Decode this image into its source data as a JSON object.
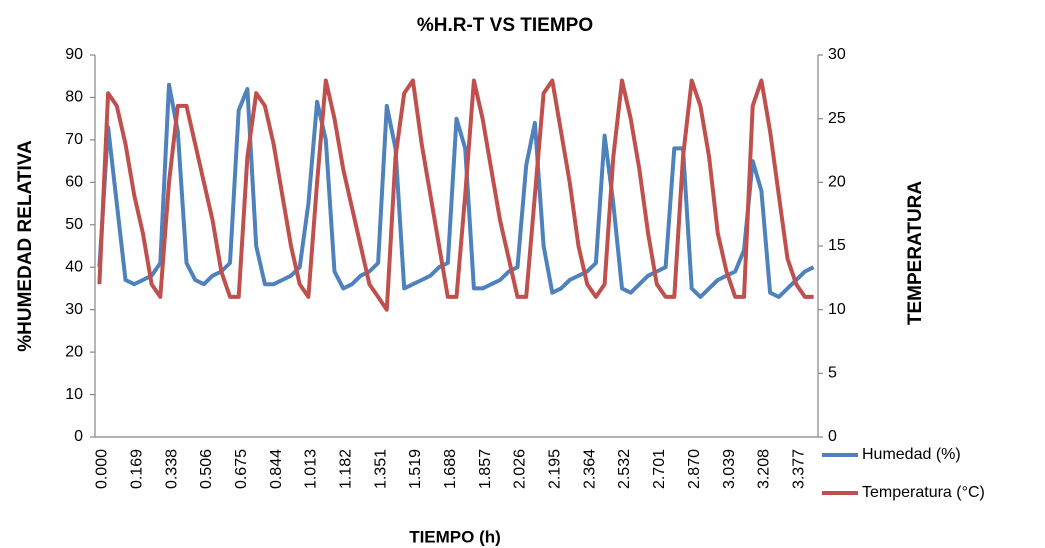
{
  "chart_data": {
    "type": "line",
    "title": "%H.R-T VS TIEMPO",
    "x_label": "TIEMPO (h)",
    "y_label": "%HUMEDAD  RELATIVA",
    "y2_label": "TEMPERATURA",
    "categories": [
      "0.000",
      null,
      null,
      null,
      "0.169",
      null,
      null,
      null,
      "0.338",
      null,
      null,
      null,
      "0.506",
      null,
      null,
      null,
      "0.675",
      null,
      null,
      null,
      "0.844",
      null,
      null,
      null,
      "1.013",
      null,
      null,
      null,
      "1.182",
      null,
      null,
      null,
      "1.351",
      null,
      null,
      null,
      "1.519",
      null,
      null,
      null,
      "1.688",
      null,
      null,
      null,
      "1.857",
      null,
      null,
      null,
      "2.026",
      null,
      null,
      null,
      "2.195",
      null,
      null,
      null,
      "2.364",
      null,
      null,
      null,
      "2.532",
      null,
      null,
      null,
      "2.701",
      null,
      null,
      null,
      "2.870",
      null,
      null,
      null,
      "3.039",
      null,
      null,
      null,
      "3.208",
      null,
      null,
      null,
      "3.377",
      null,
      null
    ],
    "series": [
      {
        "name": "Humedad (%)",
        "color": "#4f81bd",
        "values": [
          40,
          73,
          55,
          37,
          36,
          37,
          38,
          41,
          83,
          72,
          41,
          37,
          36,
          38,
          39,
          41,
          77,
          82,
          45,
          36,
          36,
          37,
          38,
          40,
          55,
          79,
          70,
          39,
          35,
          36,
          38,
          39,
          41,
          78,
          68,
          35,
          36,
          37,
          38,
          40,
          41,
          75,
          68,
          35,
          35,
          36,
          37,
          39,
          40,
          64,
          74,
          45,
          34,
          35,
          37,
          38,
          39,
          41,
          71,
          55,
          35,
          34,
          36,
          38,
          39,
          40,
          68,
          68,
          35,
          33,
          35,
          37,
          38,
          39,
          44,
          65,
          58,
          34,
          33,
          35,
          37,
          39,
          40
        ]
      },
      {
        "name": "Temperatura (°C)",
        "color": "#c0504d",
        "axis": "y2",
        "values": [
          12,
          27,
          26,
          23,
          19,
          16,
          12,
          11,
          20,
          26,
          26,
          23,
          20,
          17,
          13,
          11,
          11,
          22,
          27,
          26,
          23,
          19,
          15,
          12,
          11,
          20,
          28,
          25,
          21,
          18,
          15,
          12,
          11,
          10,
          22,
          27,
          28,
          23,
          19,
          15,
          11,
          11,
          19,
          28,
          25,
          21,
          17,
          14,
          11,
          11,
          19,
          27,
          28,
          24,
          20,
          15,
          12,
          11,
          12,
          22,
          28,
          25,
          21,
          16,
          12,
          11,
          11,
          22,
          28,
          26,
          22,
          16,
          13,
          11,
          11,
          26,
          28,
          24,
          19,
          14,
          12,
          11,
          11
        ]
      }
    ],
    "ylim": [
      0,
      90
    ],
    "yticks": [
      0,
      10,
      20,
      30,
      40,
      50,
      60,
      70,
      80,
      90
    ],
    "y2lim": [
      0,
      30
    ],
    "y2ticks": [
      0,
      5,
      10,
      15,
      20,
      25,
      30
    ],
    "grid": false,
    "legend": "right"
  }
}
